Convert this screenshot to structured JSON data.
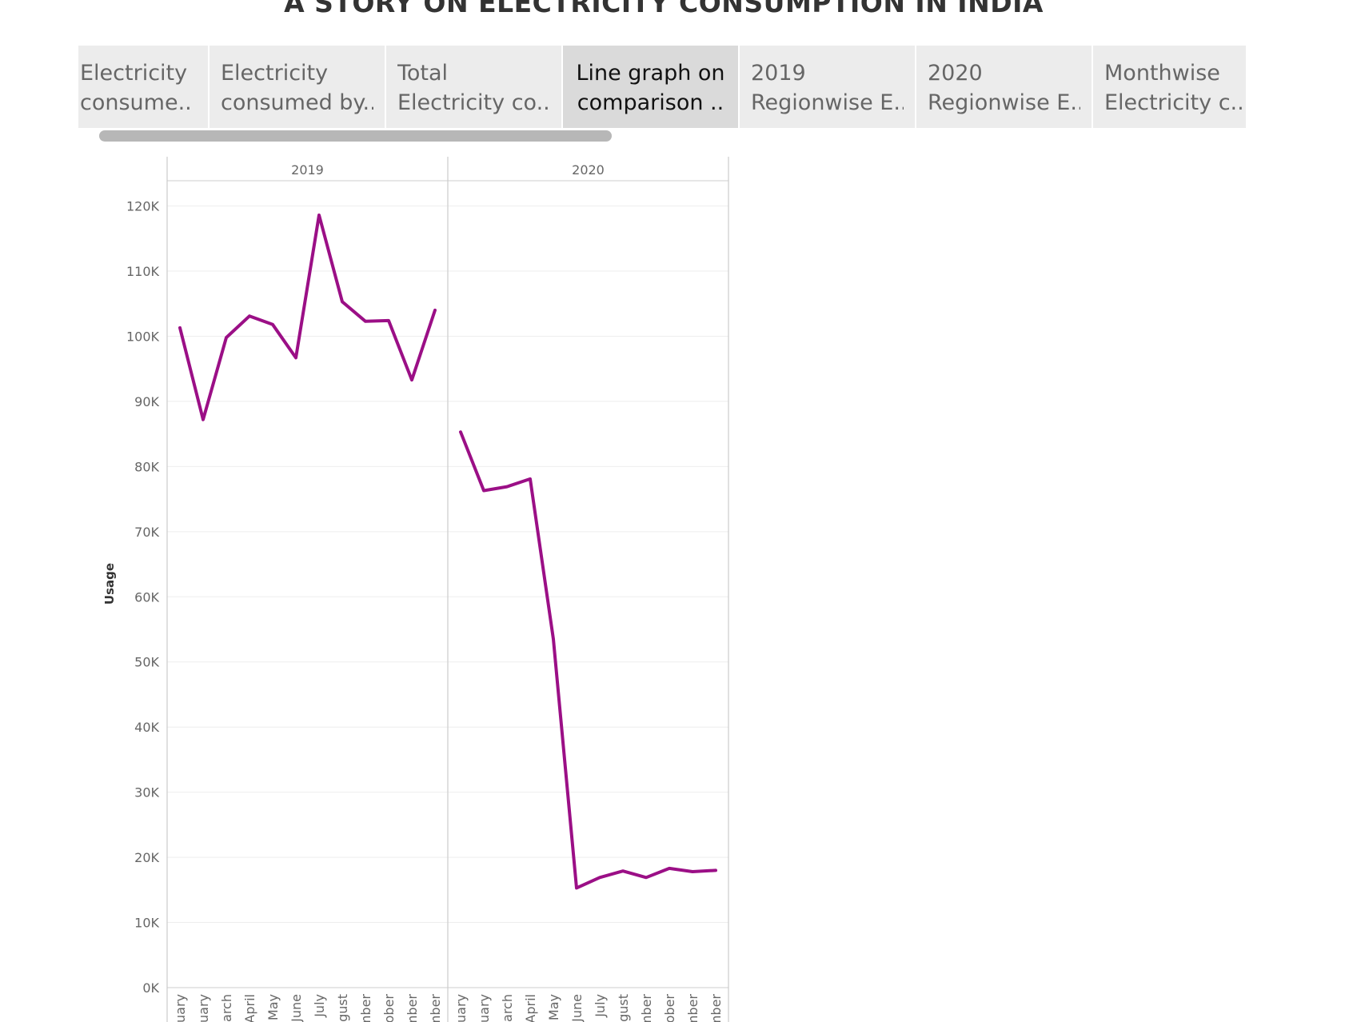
{
  "story_title": "A STORY ON ELECTRICITY CONSUMPTION IN INDIA",
  "tabs": [
    {
      "line1": "Electricity",
      "line2": "consume.."
    },
    {
      "line1": "Electricity",
      "line2": "consumed by.."
    },
    {
      "line1": "Total",
      "line2": "Electricity co.."
    },
    {
      "line1": "Line graph on",
      "line2": "comparison .."
    },
    {
      "line1": "2019",
      "line2": "Regionwise E.."
    },
    {
      "line1": "2020",
      "line2": "Regionwise E.."
    },
    {
      "line1": "Monthwise",
      "line2": "Electricity c.."
    }
  ],
  "active_tab": 3,
  "colors": {
    "line": "#9b0f86",
    "grid": "#eeeeee",
    "axis": "#cccccc"
  },
  "chart_data": {
    "type": "line",
    "title": "",
    "ylabel": "Usage",
    "ylim": [
      0,
      124000
    ],
    "yticks": [
      0,
      10000,
      20000,
      30000,
      40000,
      50000,
      60000,
      70000,
      80000,
      90000,
      100000,
      110000,
      120000
    ],
    "ytick_labels": [
      "0K",
      "10K",
      "20K",
      "30K",
      "40K",
      "50K",
      "60K",
      "70K",
      "80K",
      "90K",
      "100K",
      "110K",
      "120K"
    ],
    "month_labels": [
      "anuary",
      "oruary",
      "March",
      "April",
      "May",
      "June",
      "July",
      "ugust",
      "ember",
      "ctober",
      "ember",
      "ember"
    ],
    "panels": [
      {
        "name": "2019",
        "values": [
          101300,
          87200,
          99800,
          103100,
          101800,
          96700,
          118600,
          105300,
          102300,
          102400,
          93300,
          104000
        ]
      },
      {
        "name": "2020",
        "values": [
          85300,
          76300,
          76900,
          78100,
          53500,
          15300,
          16900,
          17900,
          16900,
          18300,
          17800,
          18000
        ]
      }
    ]
  }
}
